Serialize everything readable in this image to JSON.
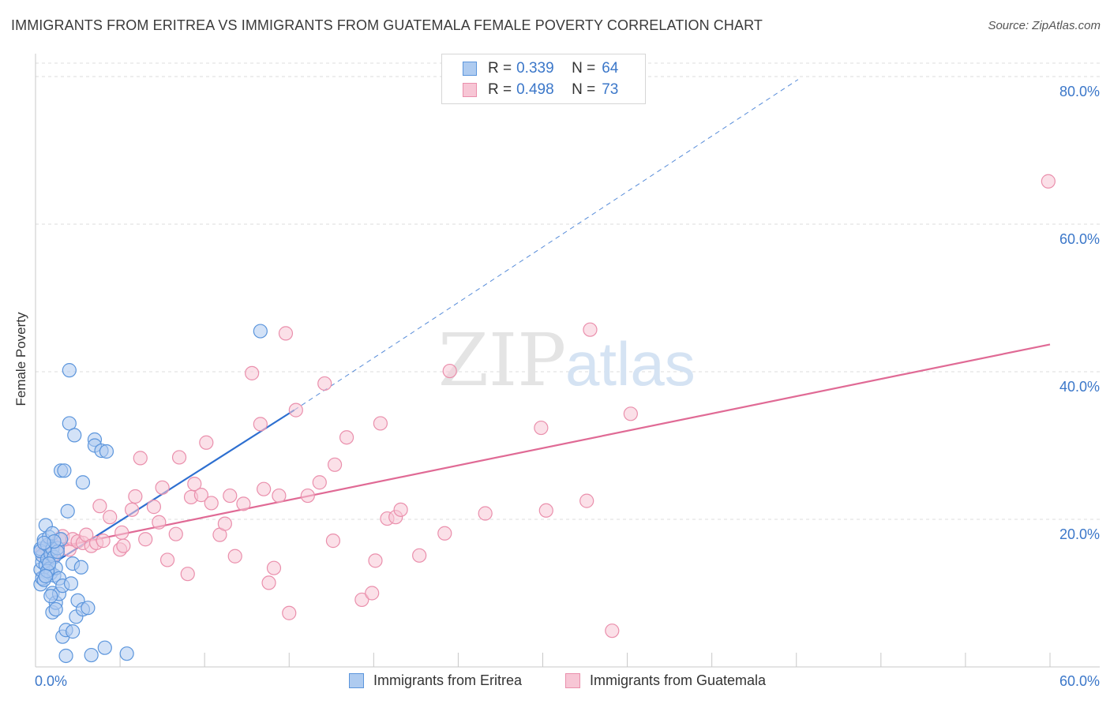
{
  "title": "IMMIGRANTS FROM ERITREA VS IMMIGRANTS FROM GUATEMALA FEMALE POVERTY CORRELATION CHART",
  "source": "Source: ZipAtlas.com",
  "watermark": {
    "part1": "ZIP",
    "part2": "atlas"
  },
  "colors": {
    "eritrea_fill": "#aecbf0",
    "eritrea_stroke": "#5b95dc",
    "eritrea_line": "#2d6fd0",
    "guatemala_fill": "#f7c6d5",
    "guatemala_stroke": "#ea8fac",
    "guatemala_line": "#e06a95",
    "tick_text": "#3b77c9",
    "grid": "#dcdcdc"
  },
  "legend": {
    "rows": [
      {
        "r_label": "R =",
        "r_value": "0.339",
        "n_label": "N =",
        "n_value": "64"
      },
      {
        "r_label": "R =",
        "r_value": "0.498",
        "n_label": "N =",
        "n_value": "73"
      }
    ]
  },
  "bottom_legend": {
    "series1": "Immigrants from Eritrea",
    "series2": "Immigrants from Guatemala"
  },
  "chart_data": {
    "type": "scatter",
    "title": "IMMIGRANTS FROM ERITREA VS IMMIGRANTS FROM GUATEMALA FEMALE POVERTY CORRELATION CHART",
    "xlabel": "",
    "ylabel": "Female Poverty",
    "xlim": [
      0,
      60
    ],
    "ylim": [
      0,
      80
    ],
    "x_tick_labels": [
      "0.0%",
      "60.0%"
    ],
    "y_ticks": [
      20,
      40,
      60,
      80
    ],
    "y_tick_labels": [
      "20.0%",
      "40.0%",
      "60.0%",
      "80.0%"
    ],
    "legend_position": "top-center",
    "series": [
      {
        "name": "Immigrants from Eritrea",
        "R": 0.339,
        "N": 64,
        "trend": {
          "x0": 0,
          "y0": 12.5,
          "x1": 15.3,
          "y1": 34.8,
          "dashed_to_x": 45.1,
          "dashed_to_y": 79.6
        },
        "points": [
          [
            0.3,
            11.2
          ],
          [
            0.4,
            12.0
          ],
          [
            0.3,
            13.2
          ],
          [
            0.4,
            14.2
          ],
          [
            0.4,
            15.1
          ],
          [
            0.3,
            16.0
          ],
          [
            0.5,
            17.2
          ],
          [
            0.3,
            15.7
          ],
          [
            0.6,
            13.8
          ],
          [
            0.7,
            16.5
          ],
          [
            0.7,
            14.6
          ],
          [
            0.8,
            13.3
          ],
          [
            0.9,
            12.7
          ],
          [
            0.9,
            15.3
          ],
          [
            0.6,
            19.2
          ],
          [
            0.8,
            17.6
          ],
          [
            1.0,
            18.1
          ],
          [
            1.0,
            16.0
          ],
          [
            1.1,
            14.9
          ],
          [
            1.1,
            12.4
          ],
          [
            1.2,
            13.4
          ],
          [
            1.0,
            10.0
          ],
          [
            1.0,
            7.4
          ],
          [
            1.2,
            8.7
          ],
          [
            1.2,
            7.8
          ],
          [
            1.4,
            9.9
          ],
          [
            1.4,
            12.0
          ],
          [
            1.3,
            16.1
          ],
          [
            1.5,
            17.3
          ],
          [
            1.5,
            26.6
          ],
          [
            1.7,
            26.6
          ],
          [
            1.6,
            11.0
          ],
          [
            1.6,
            4.1
          ],
          [
            1.8,
            5.0
          ],
          [
            1.8,
            1.5
          ],
          [
            1.9,
            21.1
          ],
          [
            2.0,
            33.0
          ],
          [
            2.0,
            40.2
          ],
          [
            2.1,
            11.3
          ],
          [
            2.2,
            14.0
          ],
          [
            2.2,
            4.8
          ],
          [
            2.3,
            31.4
          ],
          [
            2.4,
            6.8
          ],
          [
            2.5,
            9.0
          ],
          [
            2.7,
            13.5
          ],
          [
            2.8,
            25.0
          ],
          [
            2.8,
            7.8
          ],
          [
            3.1,
            8.0
          ],
          [
            3.3,
            1.6
          ],
          [
            3.5,
            30.8
          ],
          [
            3.5,
            30.0
          ],
          [
            3.9,
            29.3
          ],
          [
            4.1,
            2.6
          ],
          [
            4.2,
            29.2
          ],
          [
            5.4,
            1.8
          ],
          [
            13.3,
            45.5
          ],
          [
            0.5,
            11.8
          ],
          [
            0.7,
            13.0
          ],
          [
            1.3,
            15.6
          ],
          [
            0.8,
            14.0
          ],
          [
            1.1,
            17.0
          ],
          [
            0.6,
            12.3
          ],
          [
            0.9,
            9.6
          ],
          [
            0.5,
            16.8
          ]
        ]
      },
      {
        "name": "Immigrants from Guatemala",
        "R": 0.498,
        "N": 73,
        "trend": {
          "x0": 0,
          "y0": 15.6,
          "x1": 60,
          "y1": 43.7
        },
        "points": [
          [
            0.4,
            15.5
          ],
          [
            0.6,
            16.2
          ],
          [
            1.0,
            14.9
          ],
          [
            1.3,
            15.7
          ],
          [
            1.4,
            17.3
          ],
          [
            1.6,
            17.7
          ],
          [
            2.0,
            15.9
          ],
          [
            2.2,
            17.3
          ],
          [
            2.5,
            17.0
          ],
          [
            2.8,
            16.8
          ],
          [
            3.0,
            17.9
          ],
          [
            3.3,
            16.4
          ],
          [
            3.6,
            16.8
          ],
          [
            3.8,
            21.8
          ],
          [
            4.0,
            17.1
          ],
          [
            4.4,
            20.3
          ],
          [
            5.0,
            15.9
          ],
          [
            5.1,
            18.2
          ],
          [
            5.2,
            16.4
          ],
          [
            5.7,
            21.3
          ],
          [
            5.9,
            23.1
          ],
          [
            6.2,
            28.3
          ],
          [
            6.5,
            17.3
          ],
          [
            7.0,
            21.7
          ],
          [
            7.3,
            19.6
          ],
          [
            7.5,
            24.3
          ],
          [
            7.8,
            14.5
          ],
          [
            8.3,
            18.0
          ],
          [
            8.5,
            28.4
          ],
          [
            9.0,
            12.6
          ],
          [
            9.2,
            23.0
          ],
          [
            9.4,
            24.8
          ],
          [
            9.8,
            23.3
          ],
          [
            10.1,
            30.4
          ],
          [
            10.4,
            22.2
          ],
          [
            10.9,
            17.9
          ],
          [
            11.2,
            19.4
          ],
          [
            11.5,
            23.2
          ],
          [
            11.8,
            15.0
          ],
          [
            12.3,
            22.1
          ],
          [
            12.8,
            39.8
          ],
          [
            13.3,
            32.9
          ],
          [
            13.5,
            24.1
          ],
          [
            13.8,
            11.4
          ],
          [
            14.1,
            13.4
          ],
          [
            14.4,
            23.2
          ],
          [
            14.8,
            45.2
          ],
          [
            15.0,
            7.3
          ],
          [
            15.4,
            34.8
          ],
          [
            16.1,
            23.2
          ],
          [
            16.8,
            25.0
          ],
          [
            17.1,
            38.4
          ],
          [
            17.6,
            17.1
          ],
          [
            17.7,
            27.4
          ],
          [
            18.4,
            31.1
          ],
          [
            19.3,
            9.1
          ],
          [
            19.9,
            10.0
          ],
          [
            20.1,
            14.4
          ],
          [
            20.4,
            33.0
          ],
          [
            20.8,
            20.1
          ],
          [
            21.3,
            20.3
          ],
          [
            21.6,
            21.3
          ],
          [
            22.7,
            15.1
          ],
          [
            24.2,
            18.1
          ],
          [
            24.5,
            40.1
          ],
          [
            26.6,
            20.8
          ],
          [
            29.9,
            32.4
          ],
          [
            30.2,
            21.2
          ],
          [
            32.6,
            22.5
          ],
          [
            32.8,
            45.7
          ],
          [
            34.1,
            4.9
          ],
          [
            35.2,
            34.3
          ],
          [
            59.9,
            65.8
          ]
        ]
      }
    ]
  }
}
